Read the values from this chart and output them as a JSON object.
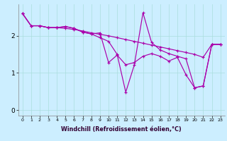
{
  "xlabel": "Windchill (Refroidissement éolien,°C)",
  "background_color": "#cceeff",
  "line_color": "#aa00aa",
  "x_ticks": [
    0,
    1,
    2,
    3,
    4,
    5,
    6,
    7,
    8,
    9,
    10,
    11,
    12,
    13,
    14,
    15,
    16,
    17,
    18,
    19,
    20,
    21,
    22,
    23
  ],
  "y_ticks": [
    0,
    1,
    2
  ],
  "ylim": [
    -0.15,
    2.85
  ],
  "xlim": [
    -0.5,
    23.5
  ],
  "series": [
    [
      2.6,
      2.27,
      2.27,
      2.22,
      2.22,
      2.2,
      2.17,
      2.13,
      2.08,
      2.04,
      2.0,
      1.95,
      1.9,
      1.85,
      1.8,
      1.75,
      1.7,
      1.65,
      1.6,
      1.55,
      1.5,
      1.42,
      1.77,
      1.77
    ],
    [
      2.6,
      2.27,
      2.27,
      2.22,
      2.22,
      2.25,
      2.2,
      2.1,
      2.05,
      1.95,
      1.85,
      1.5,
      0.48,
      1.22,
      2.62,
      1.82,
      1.62,
      1.52,
      1.45,
      1.38,
      0.6,
      0.65,
      1.77,
      1.77
    ],
    [
      2.6,
      2.27,
      2.27,
      2.22,
      2.22,
      2.25,
      2.2,
      2.1,
      2.05,
      2.08,
      1.28,
      1.48,
      1.22,
      1.28,
      1.45,
      1.52,
      1.45,
      1.32,
      1.42,
      0.95,
      0.6,
      0.65,
      1.77,
      1.77
    ]
  ]
}
